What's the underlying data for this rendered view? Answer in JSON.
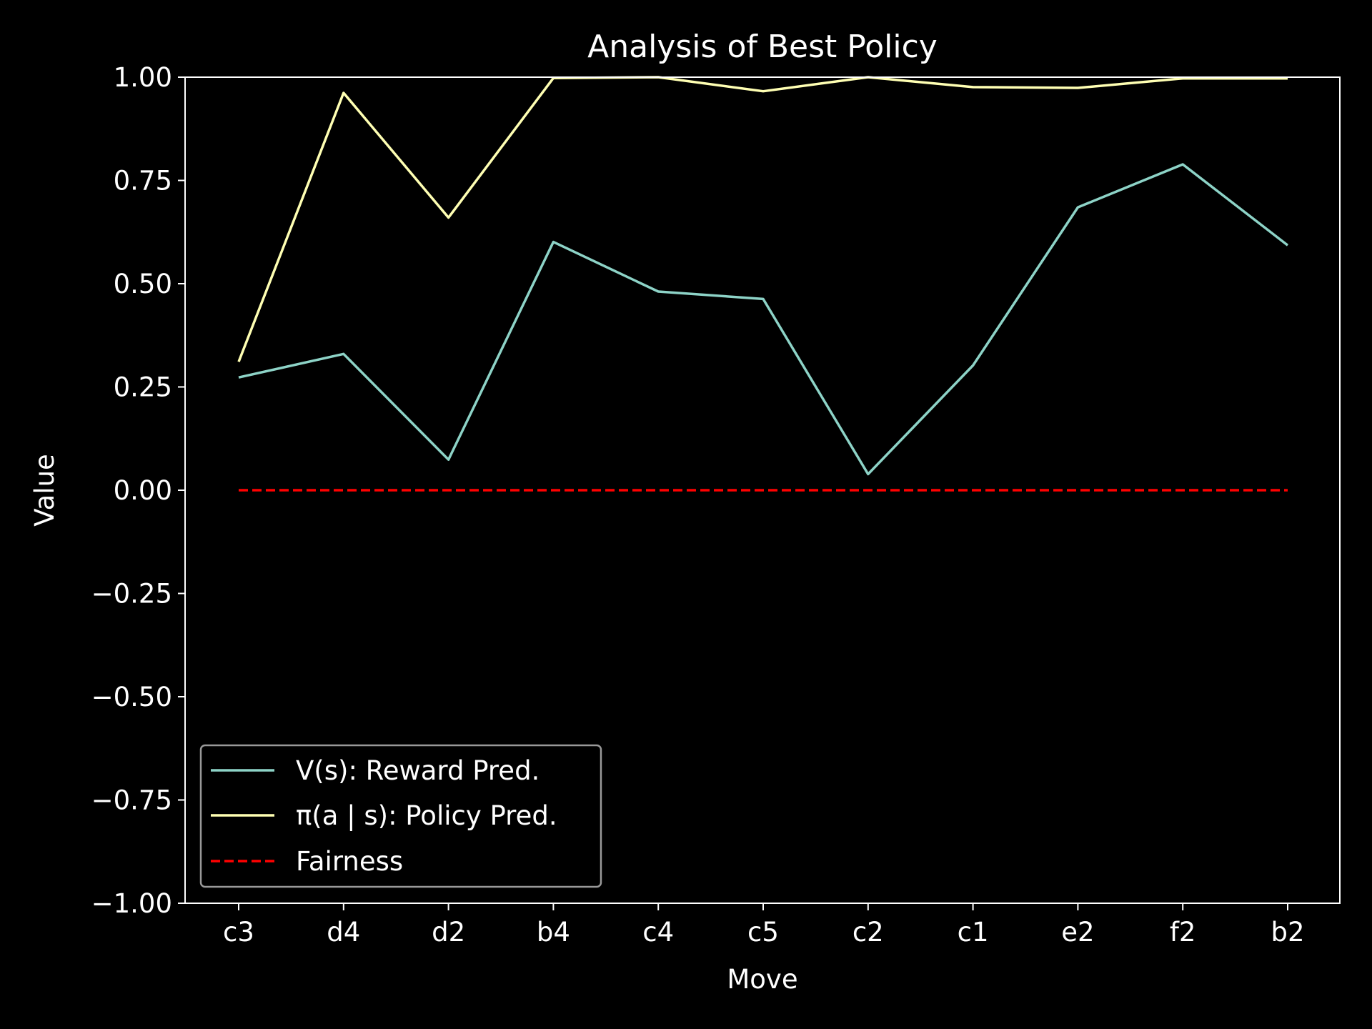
{
  "chart_data": {
    "type": "line",
    "title": "Analysis of Best Policy",
    "xlabel": "Move",
    "ylabel": "Value",
    "categories": [
      "c3",
      "d4",
      "d2",
      "b4",
      "c4",
      "c5",
      "c2",
      "c1",
      "e2",
      "f2",
      "b2"
    ],
    "ylim": [
      -1.0,
      1.0
    ],
    "yticks": [
      -1.0,
      -0.75,
      -0.5,
      -0.25,
      0.0,
      0.25,
      0.5,
      0.75,
      1.0
    ],
    "ytick_labels": [
      "−1.00",
      "−0.75",
      "−0.50",
      "−0.25",
      "0.00",
      "0.25",
      "0.50",
      "0.75",
      "1.00"
    ],
    "grid": false,
    "legend_position": "lower-left",
    "background": "#000000",
    "series": [
      {
        "name": "V(s): Reward Pred.",
        "color": "#8dd3c7",
        "style": "solid",
        "values": [
          0.273,
          0.33,
          0.074,
          0.601,
          0.481,
          0.463,
          0.039,
          0.302,
          0.685,
          0.789,
          0.593
        ]
      },
      {
        "name": "π(a | s): Policy Pred.",
        "color": "#ffffb3",
        "style": "solid",
        "values": [
          0.311,
          0.962,
          0.66,
          0.998,
          1.0,
          0.966,
          1.0,
          0.976,
          0.974,
          0.997,
          0.997
        ]
      },
      {
        "name": "Fairness",
        "color": "#ff0000",
        "style": "dashed",
        "values": [
          0,
          0,
          0,
          0,
          0,
          0,
          0,
          0,
          0,
          0,
          0
        ]
      }
    ]
  }
}
